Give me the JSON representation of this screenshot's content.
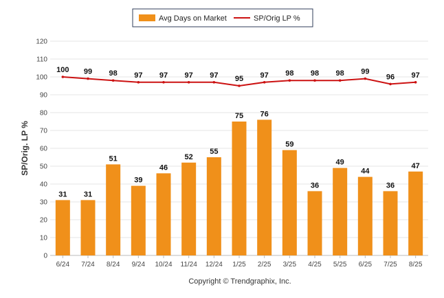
{
  "chart_data": {
    "type": "bar",
    "categories": [
      "6/24",
      "7/24",
      "8/24",
      "9/24",
      "10/24",
      "11/24",
      "12/24",
      "1/25",
      "2/25",
      "3/25",
      "4/25",
      "5/25",
      "6/25",
      "7/25",
      "8/25"
    ],
    "series": [
      {
        "name": "Avg Days on Market",
        "type": "bar",
        "color": "#f0901a",
        "values": [
          31,
          31,
          51,
          39,
          46,
          52,
          55,
          75,
          76,
          59,
          36,
          49,
          44,
          36,
          47
        ]
      },
      {
        "name": "SP/Orig LP %",
        "type": "line",
        "color": "#cc1111",
        "values": [
          100,
          99,
          98,
          97,
          97,
          97,
          97,
          95,
          97,
          98,
          98,
          98,
          99,
          96,
          97
        ]
      }
    ],
    "ylabel": "SP/Orig. LP %",
    "xlabel": "",
    "ylim": [
      0,
      120
    ],
    "yticks": [
      0,
      10,
      20,
      30,
      40,
      50,
      60,
      70,
      80,
      90,
      100,
      110,
      120
    ],
    "grid": true,
    "legend": "top-center",
    "footer": "Copyright © Trendgraphix, Inc."
  }
}
